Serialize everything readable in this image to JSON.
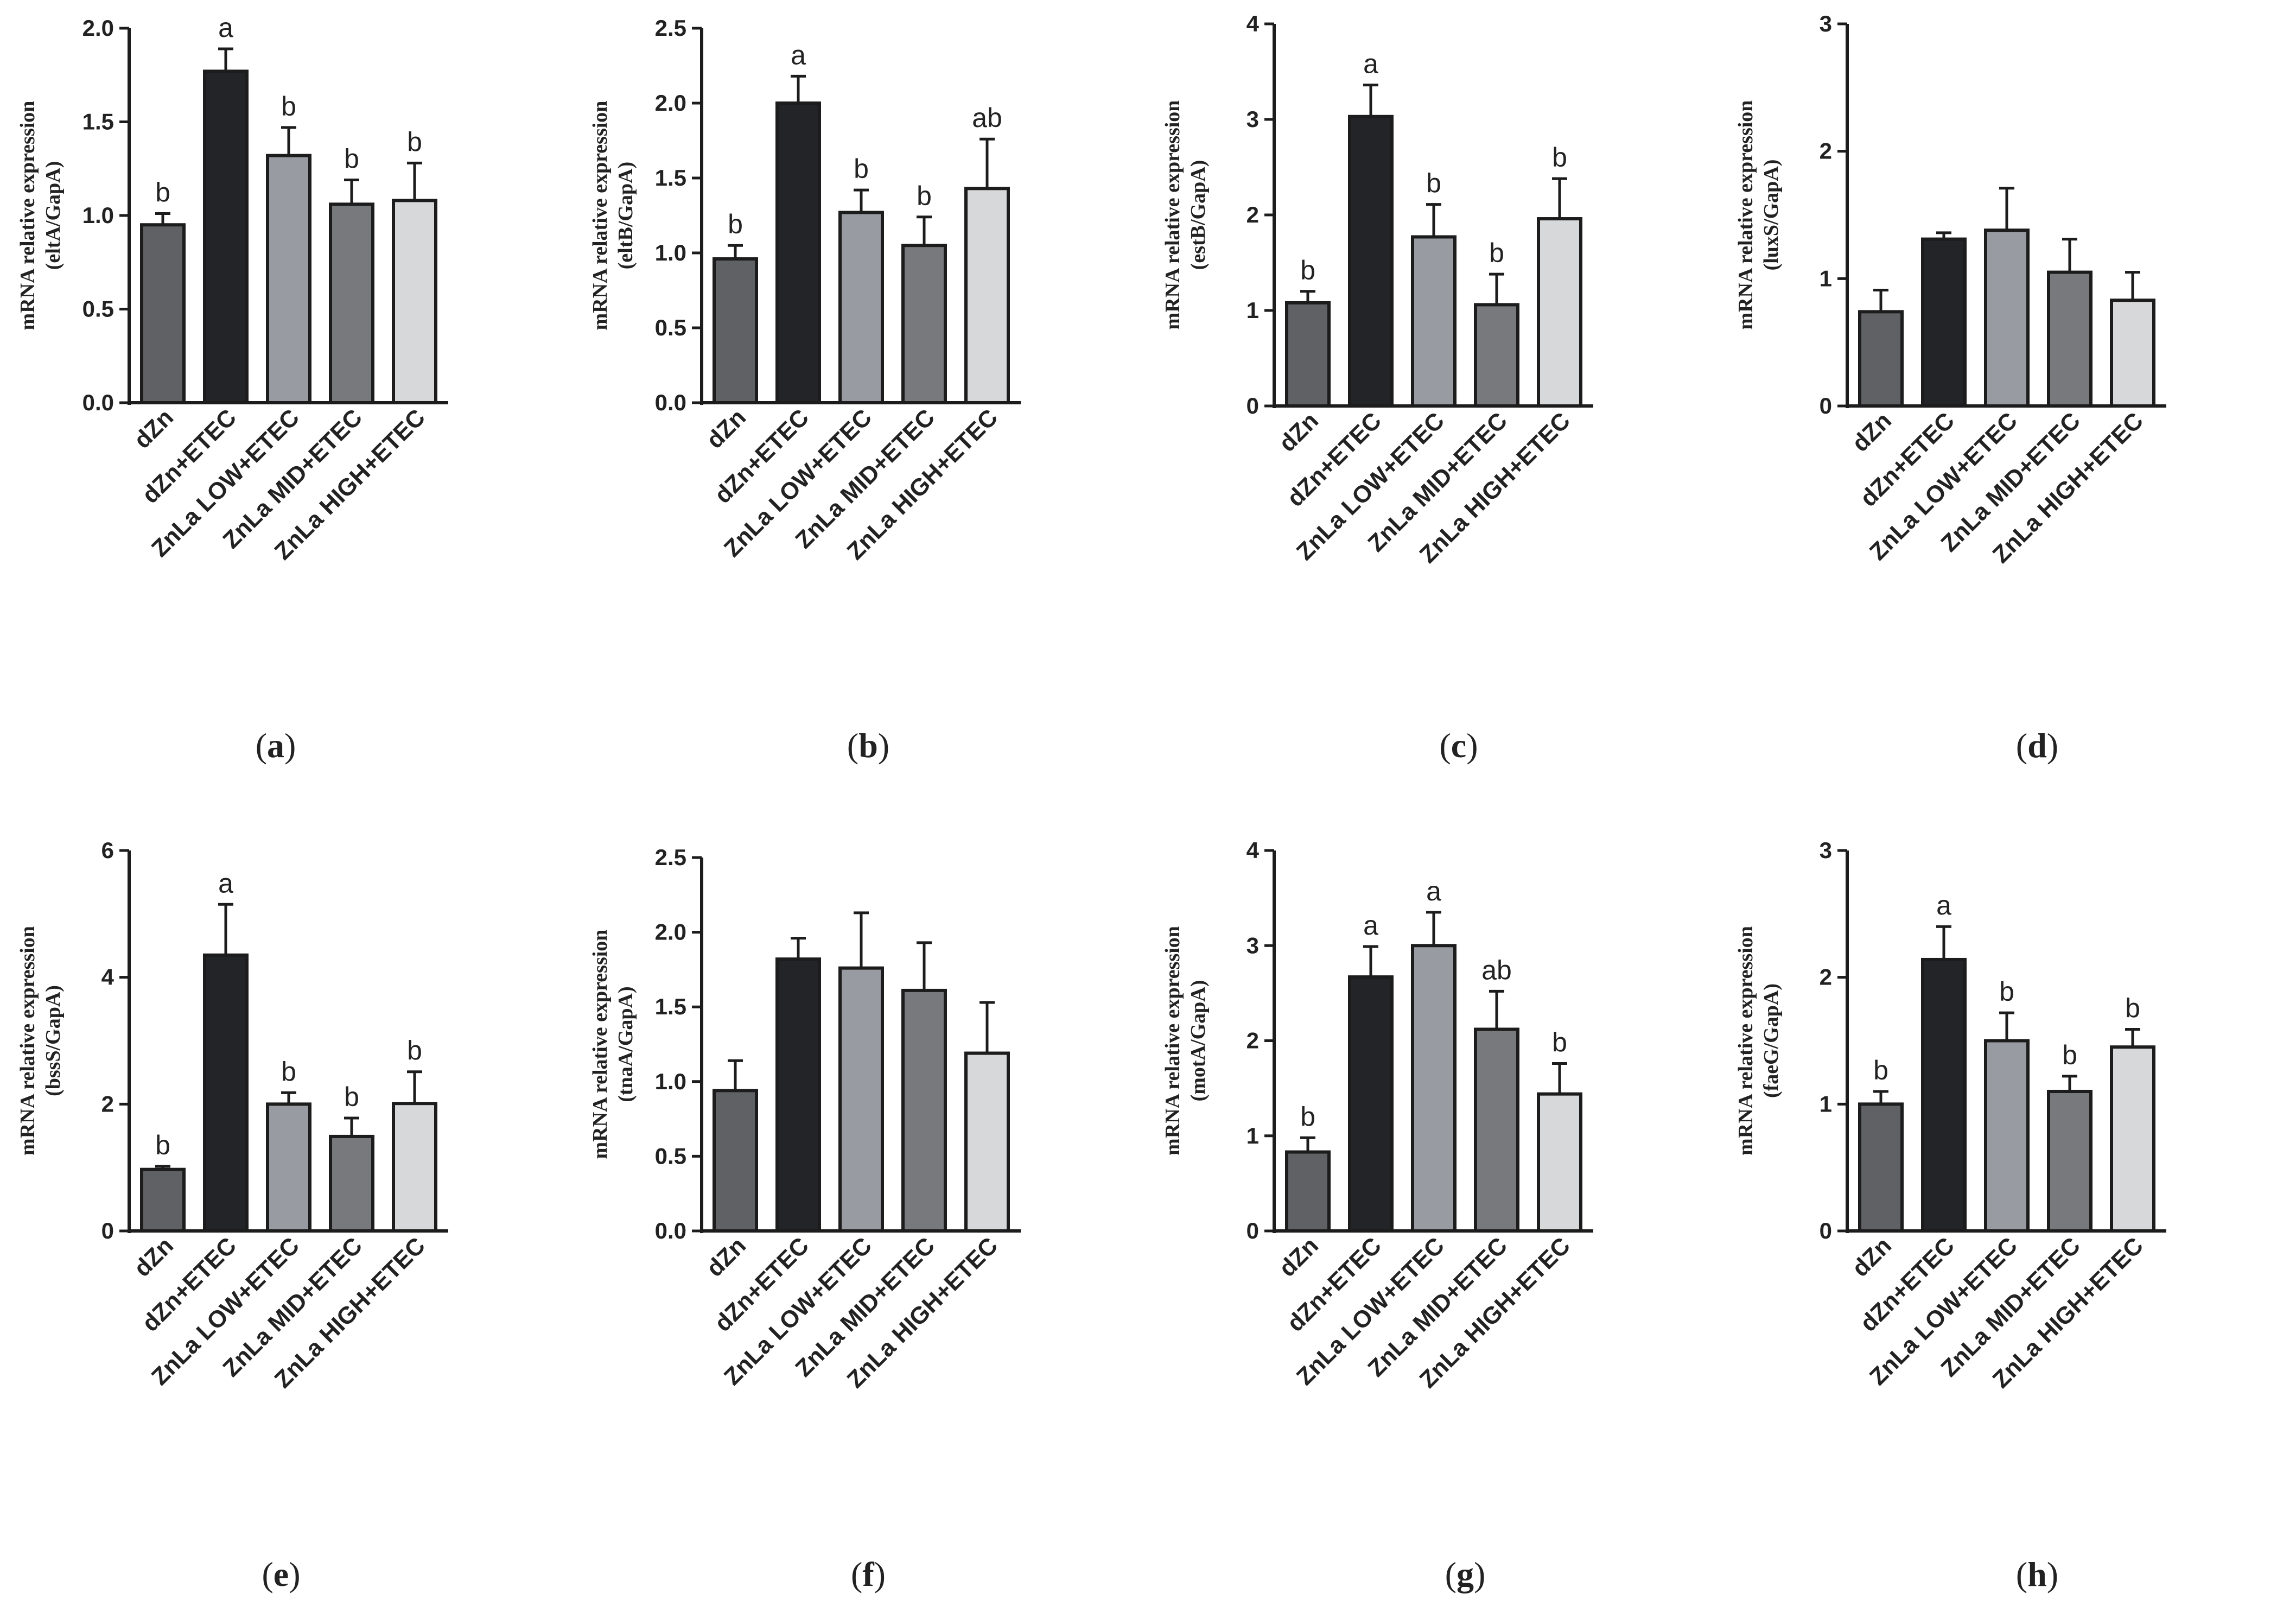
{
  "chart_data": [
    {
      "type": "bar",
      "panel_label": "a",
      "categories": [
        "dZn",
        "dZn+ETEC",
        "ZnLa LOW+ETEC",
        "ZnLa MID+ETEC",
        "ZnLa HIGH+ETEC"
      ],
      "values": [
        0.95,
        1.77,
        1.32,
        1.06,
        1.08
      ],
      "errors": [
        0.06,
        0.12,
        0.15,
        0.13,
        0.2
      ],
      "letters": [
        "b",
        "a",
        "b",
        "b",
        "b"
      ],
      "ylabel": "mRNA relative expression",
      "ylabel2": "(eltA/GapA)",
      "ylim": [
        0,
        2.0
      ],
      "yticks": [
        "0.0",
        "0.5",
        "1.0",
        "1.5",
        "2.0"
      ]
    },
    {
      "type": "bar",
      "panel_label": "b",
      "categories": [
        "dZn",
        "dZn+ETEC",
        "ZnLa LOW+ETEC",
        "ZnLa MID+ETEC",
        "ZnLa HIGH+ETEC"
      ],
      "values": [
        0.96,
        2.0,
        1.27,
        1.05,
        1.43
      ],
      "errors": [
        0.09,
        0.18,
        0.15,
        0.19,
        0.33
      ],
      "letters": [
        "b",
        "a",
        "b",
        "b",
        "ab"
      ],
      "ylabel": "mRNA relative expression",
      "ylabel2": "(eltB/GapA)",
      "ylim": [
        0,
        2.5
      ],
      "yticks": [
        "0.0",
        "0.5",
        "1.0",
        "1.5",
        "2.0",
        "2.5"
      ]
    },
    {
      "type": "bar",
      "panel_label": "c",
      "categories": [
        "dZn",
        "dZn+ETEC",
        "ZnLa LOW+ETEC",
        "ZnLa MID+ETEC",
        "ZnLa HIGH+ETEC"
      ],
      "values": [
        1.08,
        3.03,
        1.77,
        1.06,
        1.96
      ],
      "errors": [
        0.12,
        0.33,
        0.34,
        0.32,
        0.42
      ],
      "letters": [
        "b",
        "a",
        "b",
        "b",
        "b"
      ],
      "ylabel": "mRNA relative expression",
      "ylabel2": "(estB/GapA)",
      "ylim": [
        0,
        4
      ],
      "yticks": [
        "0",
        "1",
        "2",
        "3",
        "4"
      ]
    },
    {
      "type": "bar",
      "panel_label": "d",
      "categories": [
        "dZn",
        "dZn+ETEC",
        "ZnLa LOW+ETEC",
        "ZnLa MID+ETEC",
        "ZnLa HIGH+ETEC"
      ],
      "values": [
        0.74,
        1.31,
        1.38,
        1.05,
        0.83
      ],
      "errors": [
        0.17,
        0.05,
        0.33,
        0.26,
        0.22
      ],
      "letters": [
        "",
        "",
        "",
        "",
        ""
      ],
      "ylabel": "mRNA relative expression",
      "ylabel2": "(luxS/GapA)",
      "ylim": [
        0,
        3
      ],
      "yticks": [
        "0",
        "1",
        "2",
        "3"
      ]
    },
    {
      "type": "bar",
      "panel_label": "e",
      "categories": [
        "dZn",
        "dZn+ETEC",
        "ZnLa LOW+ETEC",
        "ZnLa MID+ETEC",
        "ZnLa HIGH+ETEC"
      ],
      "values": [
        0.97,
        4.35,
        2.0,
        1.49,
        2.01
      ],
      "errors": [
        0.05,
        0.8,
        0.18,
        0.29,
        0.5
      ],
      "letters": [
        "b",
        "a",
        "b",
        "b",
        "b"
      ],
      "ylabel": "mRNA relative expression",
      "ylabel2": "(bssS/GapA)",
      "ylim": [
        0,
        6
      ],
      "yticks": [
        "0",
        "2",
        "4",
        "6"
      ]
    },
    {
      "type": "bar",
      "panel_label": "f",
      "categories": [
        "dZn",
        "dZn+ETEC",
        "ZnLa LOW+ETEC",
        "ZnLa MID+ETEC",
        "ZnLa HIGH+ETEC"
      ],
      "values": [
        0.94,
        1.82,
        1.76,
        1.61,
        1.19
      ],
      "errors": [
        0.2,
        0.14,
        0.37,
        0.32,
        0.34
      ],
      "letters": [
        "",
        "",
        "",
        "",
        ""
      ],
      "ylabel": "mRNA relative expression",
      "ylabel2": "(tnaA/GapA)",
      "ylim": [
        0,
        2.5
      ],
      "yticks": [
        "0.0",
        "0.5",
        "1.0",
        "1.5",
        "2.0",
        "2.5"
      ]
    },
    {
      "type": "bar",
      "panel_label": "g",
      "categories": [
        "dZn",
        "dZn+ETEC",
        "ZnLa LOW+ETEC",
        "ZnLa MID+ETEC",
        "ZnLa HIGH+ETEC"
      ],
      "values": [
        0.83,
        2.67,
        3.0,
        2.12,
        1.44
      ],
      "errors": [
        0.15,
        0.32,
        0.35,
        0.4,
        0.32
      ],
      "letters": [
        "b",
        "a",
        "a",
        "ab",
        "b"
      ],
      "ylabel": "mRNA relative expression",
      "ylabel2": "(motA/GapA)",
      "ylim": [
        0,
        4
      ],
      "yticks": [
        "0",
        "1",
        "2",
        "3",
        "4"
      ]
    },
    {
      "type": "bar",
      "panel_label": "h",
      "categories": [
        "dZn",
        "dZn+ETEC",
        "ZnLa LOW+ETEC",
        "ZnLa MID+ETEC",
        "ZnLa HIGH+ETEC"
      ],
      "values": [
        1.0,
        2.14,
        1.5,
        1.1,
        1.45
      ],
      "errors": [
        0.1,
        0.26,
        0.22,
        0.12,
        0.14
      ],
      "letters": [
        "b",
        "a",
        "b",
        "b",
        "b"
      ],
      "ylabel": "mRNA relative expression",
      "ylabel2": "(faeG/GapA)",
      "ylim": [
        0,
        3
      ],
      "yticks": [
        "0",
        "1",
        "2",
        "3"
      ]
    }
  ],
  "colors": {
    "bars": [
      "#5f6164",
      "#232427",
      "#989ba2",
      "#77797d",
      "#d6d8da"
    ],
    "stroke": "#1c1c1c"
  }
}
